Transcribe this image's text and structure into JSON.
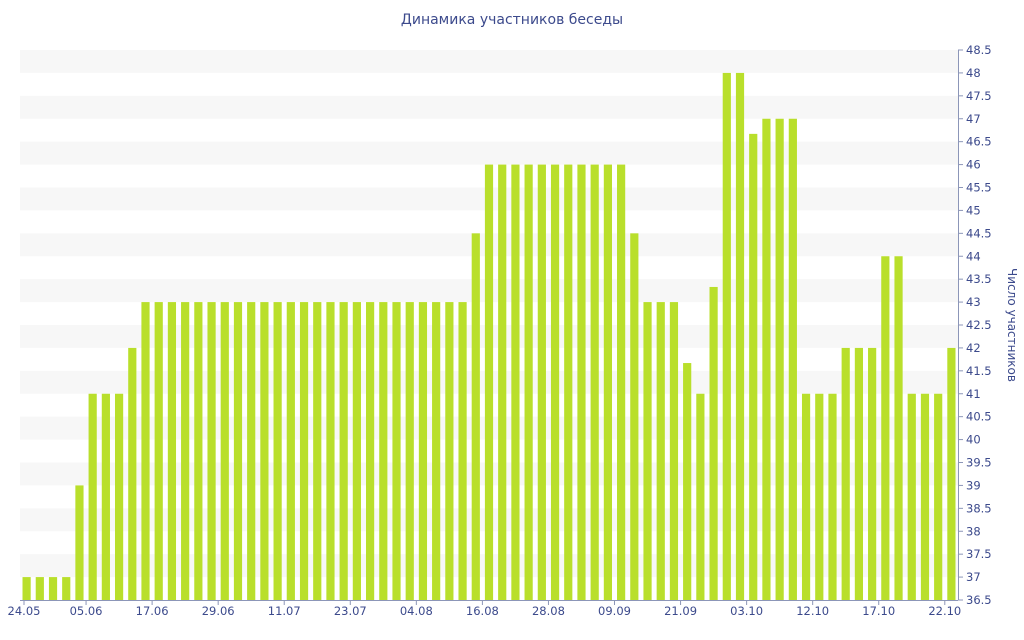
{
  "chart_data": {
    "type": "bar",
    "title": "Динамика участников беседы",
    "ylabel": "Число участников",
    "xlabel": "",
    "ylim": [
      36.5,
      48.5
    ],
    "y_ticks": [
      "36.5",
      "37",
      "37.5",
      "38",
      "38.5",
      "39",
      "39.5",
      "40",
      "40.5",
      "41",
      "41.5",
      "42",
      "42.5",
      "43",
      "43.5",
      "44",
      "44.5",
      "45",
      "45.5",
      "46",
      "46.5",
      "47",
      "47.5",
      "48",
      "48.5"
    ],
    "x_tick_labels": [
      "24.05",
      "05.06",
      "17.06",
      "29.06",
      "11.07",
      "23.07",
      "04.08",
      "16.08",
      "28.08",
      "09.09",
      "21.09",
      "03.10",
      "12.10",
      "17.10",
      "22.10"
    ],
    "x_tick_indices": [
      0,
      5,
      10,
      15,
      20,
      25,
      30,
      35,
      40,
      45,
      50,
      55,
      60,
      65,
      70
    ],
    "values": [
      37,
      37,
      37,
      37,
      39,
      41,
      41,
      41,
      42,
      43,
      43,
      43,
      43,
      43,
      43,
      43,
      43,
      43,
      43,
      43,
      43,
      43,
      43,
      43,
      43,
      43,
      43,
      43,
      43,
      43,
      43,
      43,
      43,
      43,
      44.5,
      46,
      46,
      46,
      46,
      46,
      46,
      46,
      46,
      46,
      46,
      46,
      44.5,
      43,
      43,
      43,
      41.67,
      41,
      43.33,
      48,
      48,
      46.67,
      47,
      47,
      47,
      41,
      41,
      41,
      42,
      42,
      42,
      44,
      44,
      41,
      41,
      41,
      42
    ],
    "bar_color": "#b9df2b",
    "band_color": "#f7f7f7",
    "text_color": "#3c4a8c",
    "grid": "alternating-bands",
    "y_axis_side": "right"
  }
}
